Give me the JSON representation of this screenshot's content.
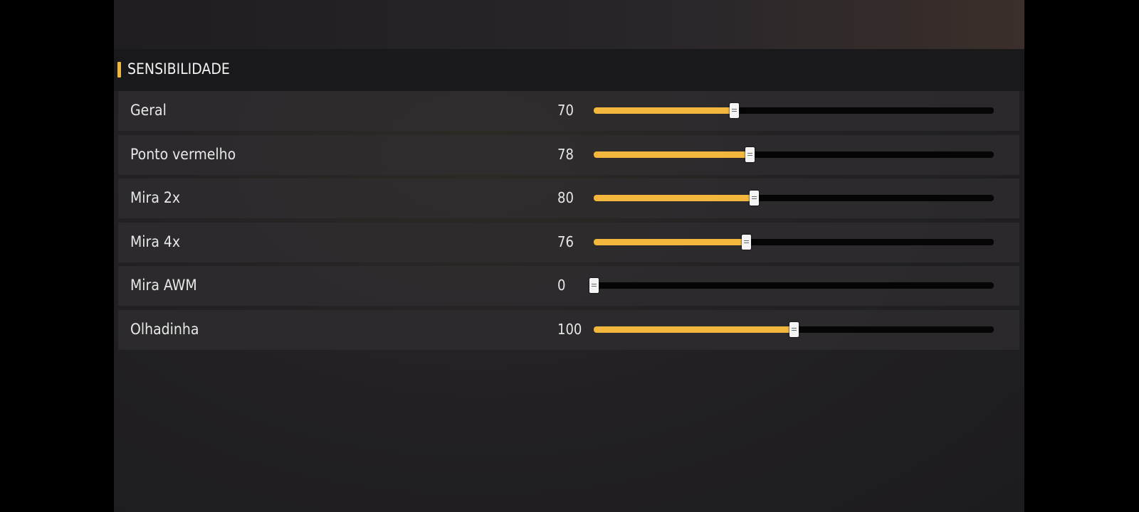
{
  "section": {
    "title": "SENSIBILIDADE",
    "accent": "#f0b73a"
  },
  "slider_range": [
    0,
    200
  ],
  "settings": [
    {
      "label": "Geral",
      "value": 70
    },
    {
      "label": "Ponto vermelho",
      "value": 78
    },
    {
      "label": "Mira 2x",
      "value": 80
    },
    {
      "label": "Mira 4x",
      "value": 76
    },
    {
      "label": "Mira AWM",
      "value": 0
    },
    {
      "label": "Olhadinha",
      "value": 100
    }
  ]
}
